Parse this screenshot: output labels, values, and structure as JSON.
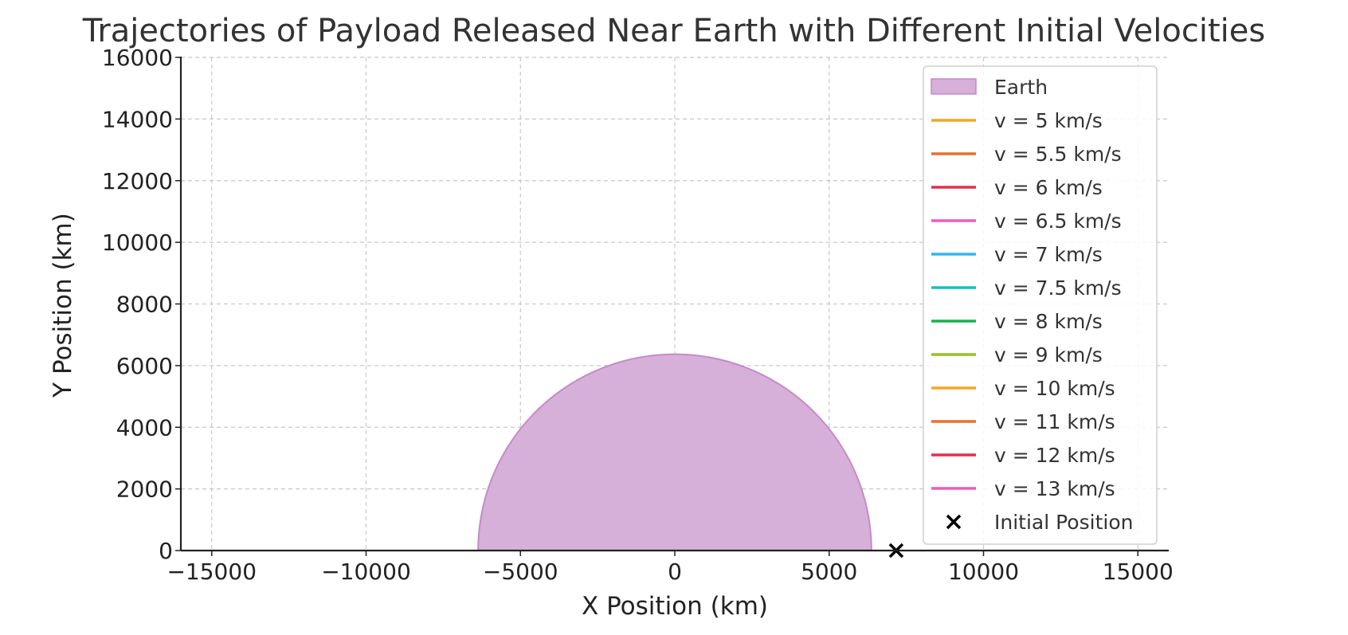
{
  "chart_data": {
    "type": "line",
    "title": "Trajectories of Payload Released Near Earth with Different Initial Velocities",
    "xlabel": "X Position (km)",
    "ylabel": "Y Position (km)",
    "xlim": [
      -16000,
      16000
    ],
    "ylim": [
      0,
      16000
    ],
    "xticks": [
      -15000,
      -10000,
      -5000,
      0,
      5000,
      10000,
      15000
    ],
    "xtick_labels": [
      "−15000",
      "−10000",
      "−5000",
      "0",
      "5000",
      "10000",
      "15000"
    ],
    "yticks": [
      0,
      2000,
      4000,
      6000,
      8000,
      10000,
      12000,
      14000,
      16000
    ],
    "ytick_labels": [
      "0",
      "2000",
      "4000",
      "6000",
      "8000",
      "10000",
      "12000",
      "14000",
      "16000"
    ],
    "grid": true,
    "legend_position": "top-right",
    "earth": {
      "label": "Earth",
      "radius": 6371,
      "fill": "#d7b0d9",
      "edge": "#c48bc6"
    },
    "series": [
      {
        "name": "v = 5 km/s",
        "color": "#f5a623",
        "x": [],
        "y": []
      },
      {
        "name": "v = 5.5 km/s",
        "color": "#e8702f",
        "x": [],
        "y": []
      },
      {
        "name": "v = 6 km/s",
        "color": "#e0304e",
        "x": [],
        "y": []
      },
      {
        "name": "v = 6.5 km/s",
        "color": "#ec5bbf",
        "x": [],
        "y": []
      },
      {
        "name": "v = 7 km/s",
        "color": "#35b5ef",
        "x": [],
        "y": []
      },
      {
        "name": "v = 7.5 km/s",
        "color": "#16c0bf",
        "x": [],
        "y": []
      },
      {
        "name": "v = 8 km/s",
        "color": "#13b54e",
        "x": [],
        "y": []
      },
      {
        "name": "v = 9 km/s",
        "color": "#94c426",
        "x": [],
        "y": []
      },
      {
        "name": "v = 10 km/s",
        "color": "#f5a623",
        "x": [],
        "y": []
      },
      {
        "name": "v = 11 km/s",
        "color": "#e8702f",
        "x": [],
        "y": []
      },
      {
        "name": "v = 12 km/s",
        "color": "#e0304e",
        "x": [],
        "y": []
      },
      {
        "name": "v = 13 km/s",
        "color": "#ec5bbf",
        "x": [],
        "y": []
      }
    ],
    "initial_position": {
      "label": "Initial Position",
      "x": 7171,
      "y": 0,
      "marker": "x",
      "color": "#000000"
    }
  }
}
